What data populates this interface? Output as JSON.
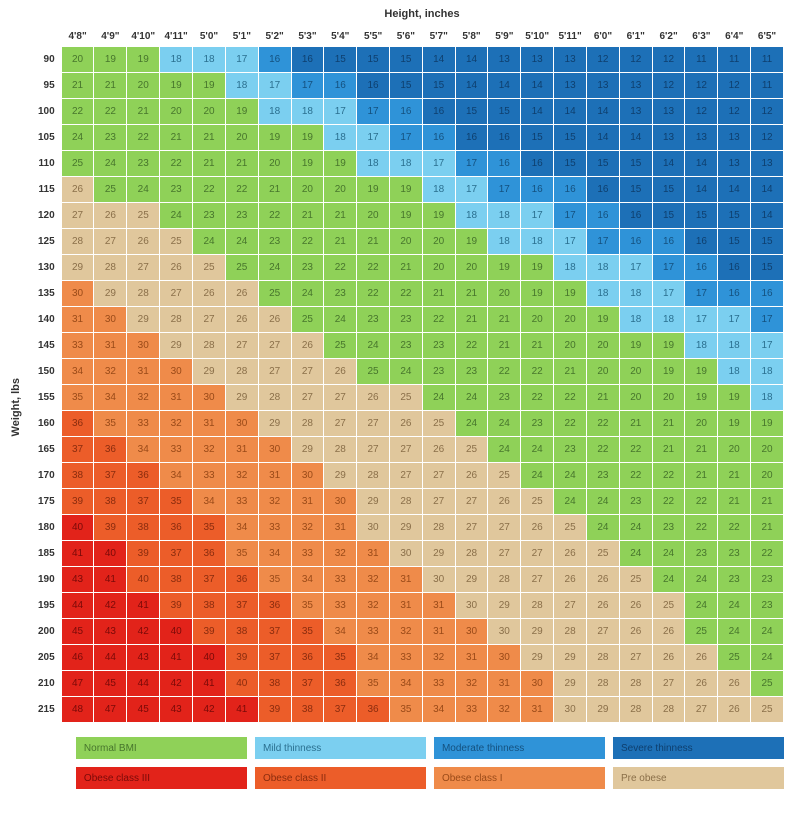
{
  "title_x": "Height, inches",
  "title_y": "Weight, lbs",
  "heights": [
    "4'8\"",
    "4'9\"",
    "4'10\"",
    "4'11\"",
    "5'0\"",
    "5'1\"",
    "5'2\"",
    "5'3\"",
    "5'4\"",
    "5'5\"",
    "5'6\"",
    "5'7\"",
    "5'8\"",
    "5'9\"",
    "5'10\"",
    "5'11\"",
    "6'0\"",
    "6'1\"",
    "6'2\"",
    "6'3\"",
    "6'4\"",
    "6'5\""
  ],
  "weights": [
    90,
    95,
    100,
    105,
    110,
    115,
    120,
    125,
    130,
    135,
    140,
    145,
    150,
    155,
    160,
    165,
    170,
    175,
    180,
    185,
    190,
    195,
    200,
    205,
    210,
    215
  ],
  "height_in": [
    56,
    57,
    58,
    59,
    60,
    61,
    62,
    63,
    64,
    65,
    66,
    67,
    68,
    69,
    70,
    71,
    72,
    73,
    74,
    75,
    76,
    77
  ],
  "categories": {
    "severe_thinness": {
      "color": "#1d70b7",
      "text": "#0e3f6e",
      "label": "Severe thinness",
      "max": 16
    },
    "moderate_thinness": {
      "color": "#2f93d8",
      "text": "#14517f",
      "label": "Moderate thinness",
      "max": 17
    },
    "mild_thinness": {
      "color": "#7bcff0",
      "text": "#2a6f8f",
      "label": "Mild thinness",
      "max": 18.5
    },
    "normal": {
      "color": "#8fd158",
      "text": "#47752c",
      "label": "Normal BMI",
      "max": 25
    },
    "pre_obese": {
      "color": "#e0c79c",
      "text": "#8a6f49",
      "label": "Pre obese",
      "max": 30
    },
    "obese1": {
      "color": "#ef8b4a",
      "text": "#9a4a18",
      "label": "Obese class I",
      "max": 35
    },
    "obese2": {
      "color": "#ec5d29",
      "text": "#8a2c0e",
      "label": "Obese class II",
      "max": 40
    },
    "obese3": {
      "color": "#e2231a",
      "text": "#7a0a08",
      "label": "Obese class III",
      "max": 999
    }
  },
  "legend_order_row1": [
    "normal",
    "mild_thinness",
    "moderate_thinness",
    "severe_thinness"
  ],
  "legend_order_row2": [
    "obese3",
    "obese2",
    "obese1",
    "pre_obese"
  ]
}
